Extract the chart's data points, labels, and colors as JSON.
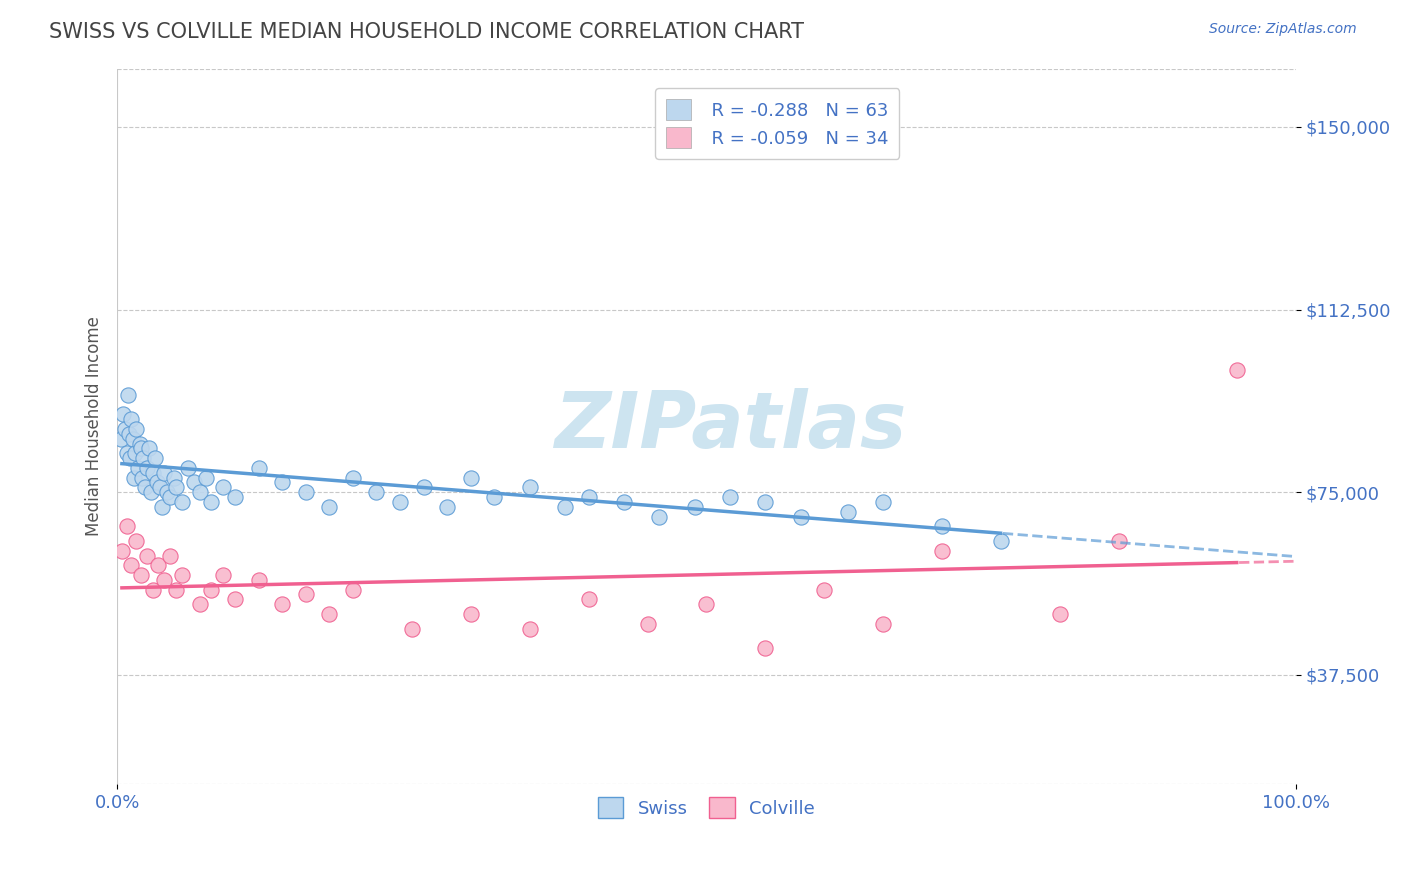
{
  "title": "SWISS VS COLVILLE MEDIAN HOUSEHOLD INCOME CORRELATION CHART",
  "source_text": "Source: ZipAtlas.com",
  "ylabel": "Median Household Income",
  "xlim": [
    0.0,
    100.0
  ],
  "ylim": [
    15000,
    162000
  ],
  "yticks": [
    37500,
    75000,
    112500,
    150000
  ],
  "ytick_labels": [
    "$37,500",
    "$75,000",
    "$112,500",
    "$150,000"
  ],
  "xtick_labels": [
    "0.0%",
    "100.0%"
  ],
  "background_color": "#ffffff",
  "grid_color": "#c8c8c8",
  "title_color": "#444444",
  "axis_label_color": "#555555",
  "tick_label_color": "#4472c4",
  "watermark_text": "ZIPatlas",
  "watermark_color": "#cde4f0",
  "swiss_color": "#5b9bd5",
  "swiss_scatter_color": "#bdd7ee",
  "colville_color": "#f06090",
  "colville_scatter_color": "#f9b8cc",
  "swiss_R": -0.288,
  "swiss_N": 63,
  "colville_R": -0.059,
  "colville_N": 34,
  "legend_label_swiss": "Swiss",
  "legend_label_colville": "Colville",
  "swiss_x": [
    0.3,
    0.5,
    0.7,
    0.8,
    0.9,
    1.0,
    1.1,
    1.2,
    1.3,
    1.4,
    1.5,
    1.6,
    1.8,
    1.9,
    2.0,
    2.1,
    2.2,
    2.4,
    2.5,
    2.7,
    2.9,
    3.0,
    3.2,
    3.4,
    3.6,
    3.8,
    4.0,
    4.2,
    4.5,
    4.8,
    5.0,
    5.5,
    6.0,
    6.5,
    7.0,
    7.5,
    8.0,
    9.0,
    10.0,
    12.0,
    14.0,
    16.0,
    18.0,
    20.0,
    22.0,
    24.0,
    26.0,
    28.0,
    30.0,
    32.0,
    35.0,
    38.0,
    40.0,
    43.0,
    46.0,
    49.0,
    52.0,
    55.0,
    58.0,
    62.0,
    65.0,
    70.0,
    75.0
  ],
  "swiss_y": [
    86000,
    91000,
    88000,
    83000,
    95000,
    87000,
    82000,
    90000,
    86000,
    78000,
    83000,
    88000,
    80000,
    85000,
    84000,
    78000,
    82000,
    76000,
    80000,
    84000,
    75000,
    79000,
    82000,
    77000,
    76000,
    72000,
    79000,
    75000,
    74000,
    78000,
    76000,
    73000,
    80000,
    77000,
    75000,
    78000,
    73000,
    76000,
    74000,
    80000,
    77000,
    75000,
    72000,
    78000,
    75000,
    73000,
    76000,
    72000,
    78000,
    74000,
    76000,
    72000,
    74000,
    73000,
    70000,
    72000,
    74000,
    73000,
    70000,
    71000,
    73000,
    68000,
    65000
  ],
  "colville_x": [
    0.4,
    0.8,
    1.2,
    1.6,
    2.0,
    2.5,
    3.0,
    3.5,
    4.0,
    4.5,
    5.0,
    5.5,
    7.0,
    8.0,
    9.0,
    10.0,
    12.0,
    14.0,
    16.0,
    18.0,
    20.0,
    25.0,
    30.0,
    35.0,
    40.0,
    45.0,
    50.0,
    55.0,
    60.0,
    65.0,
    70.0,
    80.0,
    85.0,
    95.0
  ],
  "colville_y": [
    63000,
    68000,
    60000,
    65000,
    58000,
    62000,
    55000,
    60000,
    57000,
    62000,
    55000,
    58000,
    52000,
    55000,
    58000,
    53000,
    57000,
    52000,
    54000,
    50000,
    55000,
    47000,
    50000,
    47000,
    53000,
    48000,
    52000,
    43000,
    55000,
    48000,
    63000,
    50000,
    65000,
    100000
  ]
}
